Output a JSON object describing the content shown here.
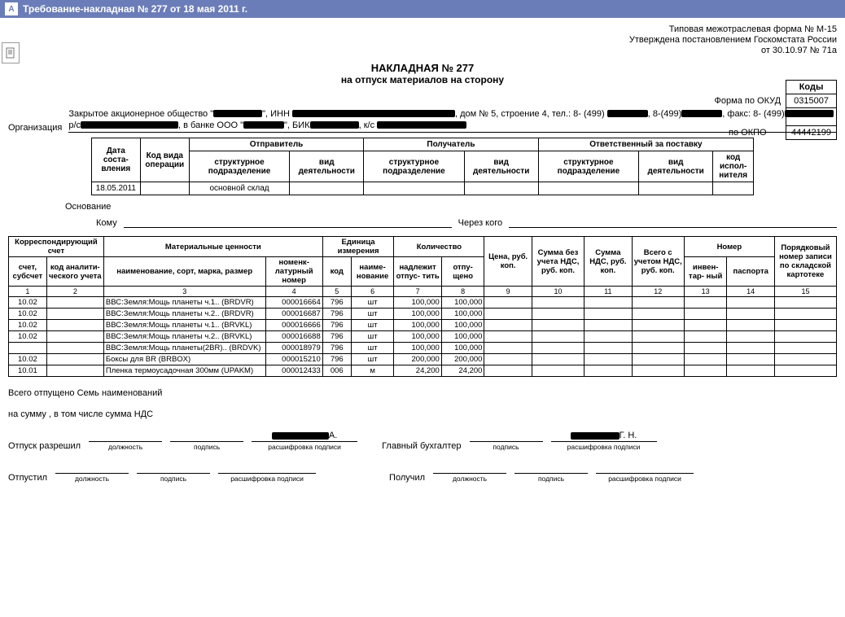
{
  "window": {
    "title": "Требование-накладная № 277 от 18 мая 2011 г."
  },
  "form_meta": {
    "line1": "Типовая межотраслевая форма № М-15",
    "line2": "Утверждена постановлением Госкомстата России",
    "line3": "от 30.10.97 № 71а"
  },
  "doc": {
    "title": "НАКЛАДНАЯ № 277",
    "subtitle": "на отпуск материалов на сторону"
  },
  "codes": {
    "header": "Коды",
    "okud_label": "Форма по ОКУД",
    "okud": "0315007",
    "okpo_label": "по ОКПО",
    "okpo": "44442199"
  },
  "org": {
    "label": "Организация",
    "prefix": "Закрытое акционерное общество \"",
    "mid1": "\", ИНН ",
    "addr": ", дом № 5, строение 4, тел.: 8- (499) ",
    "fax": ", 8-(499)",
    "fax2": ", факс: 8- (499)",
    "rs": " р/с",
    "bank": ", в банке ООО \"",
    "bik": "\", БИК",
    "ks": ", к/с "
  },
  "hdr": {
    "date_h": "Дата соста- вления",
    "opcode_h": "Код вида операции",
    "sender_h": "Отправитель",
    "receiver_h": "Получатель",
    "resp_h": "Ответственный за поставку",
    "struct_h": "структурное подразделение",
    "activity_h": "вид деятельности",
    "exec_h": "код испол- нителя",
    "date": "18.05.2011",
    "opcode": "",
    "sender_struct": "основной склад",
    "sender_act": "",
    "recv_struct": "",
    "recv_act": "",
    "resp_struct": "",
    "resp_act": "",
    "exec": ""
  },
  "labels": {
    "basis": "Основание",
    "to": "Кому",
    "via": "Через кого"
  },
  "main_headers": {
    "corr": "Корреспондирующий счет",
    "account": "счет, субсчет",
    "analytic": "код аналити- ческого учета",
    "mat": "Материальные ценности",
    "name": "наименование, сорт, марка, размер",
    "nomen": "номенк- латурный номер",
    "unit": "Единица измерения",
    "unit_code": "код",
    "unit_name": "наиме- нование",
    "qty": "Количество",
    "qty_need": "надлежит отпус- тить",
    "qty_done": "отпу- щено",
    "price": "Цена, руб. коп.",
    "sum_novat": "Сумма без учета НДС, руб. коп.",
    "sum_vat": "Сумма НДС, руб. коп.",
    "sum_total": "Всего с учетом НДС, руб. коп.",
    "number": "Номер",
    "inv": "инвен- тар- ный",
    "passport": "паспорта",
    "order": "Порядковый номер записи по складской картотеке"
  },
  "rows": [
    {
      "acct": "10.02",
      "an": "",
      "name": "ВВС:Земля:Мощь планеты ч.1.. (BRDVR)",
      "nomen": "000016664",
      "ucode": "796",
      "uname": "шт",
      "need": "100,000",
      "done": "100,000"
    },
    {
      "acct": "10.02",
      "an": "",
      "name": "ВВС:Земля:Мощь планеты ч.2.. (BRDVR)",
      "nomen": "000016687",
      "ucode": "796",
      "uname": "шт",
      "need": "100,000",
      "done": "100,000"
    },
    {
      "acct": "10.02",
      "an": "",
      "name": "ВВС:Земля:Мощь планеты ч.1.. (BRVKL)",
      "nomen": "000016666",
      "ucode": "796",
      "uname": "шт",
      "need": "100,000",
      "done": "100,000"
    },
    {
      "acct": "10.02",
      "an": "",
      "name": "ВВС:Земля:Мощь планеты ч.2.. (BRVKL)",
      "nomen": "000016688",
      "ucode": "796",
      "uname": "шт",
      "need": "100,000",
      "done": "100,000"
    },
    {
      "acct": "",
      "an": "",
      "name": "ВВС:Земля:Мощь планеты(2BR).. (BRDVK)",
      "nomen": "000018979",
      "ucode": "796",
      "uname": "шт",
      "need": "100,000",
      "done": "100,000"
    },
    {
      "acct": "10.02",
      "an": "",
      "name": "Боксы для BR (BRBOX)",
      "nomen": "000015210",
      "ucode": "796",
      "uname": "шт",
      "need": "200,000",
      "done": "200,000"
    },
    {
      "acct": "10.01",
      "an": "",
      "name": "Пленка термоусадочная 300мм (UPAKM)",
      "nomen": "000012433",
      "ucode": "006",
      "uname": "м",
      "need": "24,200",
      "done": "24,200"
    }
  ],
  "footer": {
    "total_items": "Всего отпущено Семь  наименований",
    "total_sum": "на сумму , в том числе сумма НДС",
    "allow": "Отпуск разрешил",
    "chief_acc": "Главный бухгалтер",
    "released": "Отпустил",
    "received": "Получил",
    "pos": "должность",
    "sign": "подпись",
    "decode": "расшифровка подписи",
    "name1": "А.",
    "name2": "Г. Н."
  },
  "colors": {
    "titlebar_bg": "#6b7db8",
    "titlebar_fg": "#ffffff",
    "border": "#000000"
  }
}
